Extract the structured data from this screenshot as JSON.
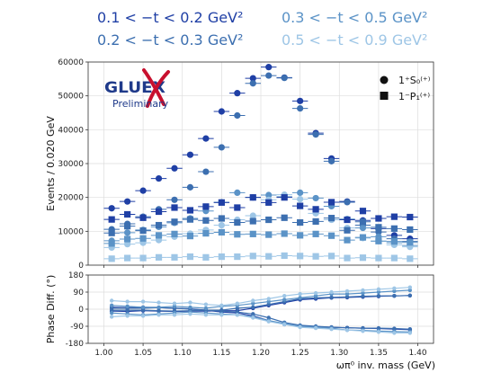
{
  "header_legend": [
    {
      "text": "0.1 < −t < 0.2 GeV²",
      "color": "#1f3fa5"
    },
    {
      "text": "0.3 < −t < 0.5 GeV²",
      "color": "#5b93c7"
    },
    {
      "text": "0.2 < −t < 0.3 GeV²",
      "color": "#3c6fb0"
    },
    {
      "text": "0.5 < −t < 0.9 GeV²",
      "color": "#9ec6e6"
    }
  ],
  "logo": {
    "text": "GLUEX",
    "sub": "Preliminary"
  },
  "marker_legend": [
    {
      "label": "1⁺S₀⁽⁺⁾",
      "marker": "circle"
    },
    {
      "label": "1⁻P₁⁽⁺⁾",
      "marker": "square"
    }
  ],
  "chart_data": [
    {
      "type": "scatter",
      "xlabel": "ωπ⁰ inv. mass (GeV)",
      "ylabel": "Events / 0.020 GeV",
      "xlim": [
        0.98,
        1.42
      ],
      "ylim": [
        0,
        60000
      ],
      "yticks": [
        0,
        10000,
        20000,
        30000,
        40000,
        50000,
        60000
      ],
      "xticks": [
        1.0,
        1.05,
        1.1,
        1.15,
        1.2,
        1.25,
        1.3,
        1.35,
        1.4
      ],
      "grid": true,
      "legend_position": "top-right",
      "x": [
        1.01,
        1.03,
        1.05,
        1.07,
        1.09,
        1.11,
        1.13,
        1.15,
        1.17,
        1.19,
        1.21,
        1.23,
        1.25,
        1.27,
        1.29,
        1.31,
        1.33,
        1.35,
        1.37,
        1.39
      ],
      "series": [
        {
          "bin": 0,
          "marker": "circle",
          "color": "#1f3fa5",
          "values": [
            16800,
            18800,
            22000,
            25600,
            28600,
            32600,
            37400,
            45400,
            50800,
            55200,
            58500,
            55400,
            48500,
            39000,
            31500,
            18800,
            13200,
            10800,
            8800,
            7800
          ]
        },
        {
          "bin": 1,
          "marker": "circle",
          "color": "#3c6fb0",
          "values": [
            10600,
            12200,
            14300,
            16500,
            19300,
            23000,
            27600,
            34800,
            44200,
            53700,
            56000,
            55300,
            46300,
            38600,
            30700,
            18600,
            11800,
            9800,
            7800,
            7000
          ]
        },
        {
          "bin": 2,
          "marker": "circle",
          "color": "#5b93c7",
          "values": [
            7200,
            9600,
            10400,
            11300,
            12500,
            13800,
            16000,
            18600,
            21400,
            20000,
            20700,
            20200,
            21400,
            19800,
            17400,
            13600,
            11000,
            8400,
            6600,
            5800
          ]
        },
        {
          "bin": 3,
          "marker": "circle",
          "color": "#9ec6e6",
          "values": [
            5200,
            6200,
            6600,
            7400,
            8400,
            9300,
            10400,
            11800,
            13400,
            14600,
            19300,
            20800,
            19500,
            15300,
            13400,
            11000,
            8000,
            7100,
            6000,
            5400
          ]
        },
        {
          "bin": 0,
          "marker": "square",
          "color": "#1f3fa5",
          "values": [
            13500,
            15000,
            14000,
            15800,
            17000,
            16200,
            17300,
            18500,
            17000,
            20000,
            18500,
            20000,
            17500,
            16500,
            18600,
            13400,
            16000,
            13800,
            14300,
            14200
          ]
        },
        {
          "bin": 1,
          "marker": "square",
          "color": "#3c6fb0",
          "values": [
            9500,
            11500,
            10200,
            11800,
            12800,
            13500,
            13200,
            13800,
            12600,
            13000,
            13400,
            14000,
            12600,
            12900,
            13900,
            10300,
            12800,
            11200,
            10800,
            10500
          ]
        },
        {
          "bin": 2,
          "marker": "square",
          "color": "#5b93c7",
          "values": [
            6400,
            7700,
            7900,
            8800,
            9200,
            8600,
            9400,
            9700,
            9100,
            9200,
            9000,
            9300,
            8800,
            9200,
            8700,
            7400,
            8200,
            7100,
            7000,
            6700
          ]
        },
        {
          "bin": 3,
          "marker": "square",
          "color": "#9ec6e6",
          "values": [
            1900,
            2100,
            2100,
            2300,
            2300,
            2500,
            2300,
            2500,
            2500,
            2700,
            2600,
            2800,
            2700,
            2600,
            2700,
            2100,
            2200,
            2100,
            2100,
            1900
          ]
        }
      ]
    },
    {
      "type": "line",
      "xlabel": "ωπ⁰ inv. mass (GeV)",
      "ylabel": "Phase Diff. (°)",
      "xlim": [
        0.98,
        1.42
      ],
      "ylim": [
        -180,
        180
      ],
      "yticks": [
        -180,
        -90,
        0,
        90,
        180
      ],
      "xticks": [
        1.0,
        1.05,
        1.1,
        1.15,
        1.2,
        1.25,
        1.3,
        1.35,
        1.4
      ],
      "grid": true,
      "x": [
        1.01,
        1.03,
        1.05,
        1.07,
        1.09,
        1.11,
        1.13,
        1.15,
        1.17,
        1.19,
        1.21,
        1.23,
        1.25,
        1.27,
        1.29,
        1.31,
        1.33,
        1.35,
        1.37,
        1.39
      ],
      "series": [
        {
          "bin": 0,
          "color": "#1f3fa5",
          "values": [
            -10,
            -12,
            -8,
            -10,
            -12,
            -10,
            -10,
            -8,
            -8,
            5,
            20,
            35,
            50,
            55,
            60,
            62,
            65,
            68,
            70,
            72
          ]
        },
        {
          "bin": 0,
          "color": "#1f3fa5",
          "values": [
            10,
            8,
            10,
            8,
            5,
            2,
            -5,
            -15,
            -20,
            -35,
            -60,
            -80,
            -90,
            -92,
            -95,
            -98,
            -100,
            -102,
            -105,
            -108
          ]
        },
        {
          "bin": 1,
          "color": "#3c6fb0",
          "values": [
            -5,
            -5,
            -5,
            -8,
            -10,
            -8,
            -5,
            -5,
            5,
            10,
            25,
            40,
            55,
            60,
            62,
            65,
            68,
            70,
            70,
            72
          ]
        },
        {
          "bin": 1,
          "color": "#3c6fb0",
          "values": [
            5,
            5,
            5,
            8,
            5,
            0,
            -5,
            -10,
            -15,
            -25,
            -45,
            -70,
            -85,
            -90,
            -95,
            -98,
            -100,
            -100,
            -102,
            -105
          ]
        },
        {
          "bin": 2,
          "color": "#5b93c7",
          "values": [
            20,
            15,
            10,
            10,
            15,
            10,
            5,
            15,
            20,
            30,
            40,
            50,
            60,
            70,
            80,
            80,
            85,
            90,
            95,
            100
          ]
        },
        {
          "bin": 2,
          "color": "#5b93c7",
          "values": [
            -20,
            -25,
            -30,
            -25,
            -20,
            -15,
            -20,
            -25,
            -30,
            -40,
            -60,
            -75,
            -90,
            -95,
            -100,
            -110,
            -112,
            -115,
            -118,
            -120
          ]
        },
        {
          "bin": 3,
          "color": "#9ec6e6",
          "values": [
            45,
            40,
            40,
            35,
            30,
            35,
            25,
            20,
            30,
            45,
            55,
            70,
            80,
            85,
            90,
            95,
            100,
            105,
            110,
            115
          ]
        },
        {
          "bin": 3,
          "color": "#9ec6e6",
          "values": [
            -40,
            -35,
            -35,
            -30,
            -30,
            -25,
            -30,
            -30,
            -30,
            -45,
            -65,
            -80,
            -95,
            -100,
            -105,
            -110,
            -115,
            -120,
            -125,
            -125
          ]
        }
      ]
    }
  ]
}
